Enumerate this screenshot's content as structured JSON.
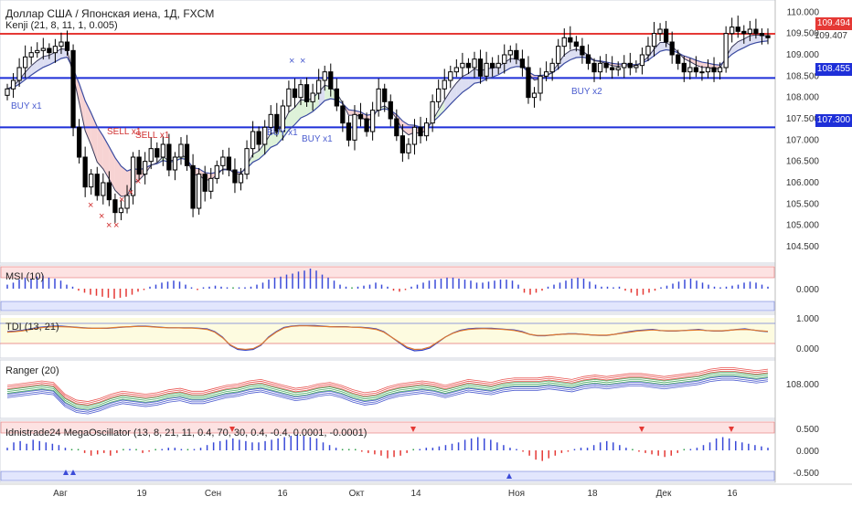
{
  "header": {
    "title": "Доллар США / Японская иена, 1Д, FXCM",
    "indicator": "Kenji (21, 8, 11, 1, 0.005)"
  },
  "colors": {
    "up": "#ffffff",
    "down": "#000000",
    "resistance": "#e53935",
    "support": "#1e2fd8",
    "kenji_fast": "#3a3a5a",
    "kenji_slow": "#3a4aa0",
    "cloud_bear": "#f5c8c8",
    "cloud_bull": "#d6efd0",
    "cloud_neutral": "#d3d6ef",
    "buy_label": "#4a5ccf",
    "sell_label": "#d03030",
    "osc_up": "#3a4ad8",
    "osc_down": "#e53935",
    "osc_flat": "#2e9e4a"
  },
  "levels": [
    {
      "name": "resistance",
      "value": "109.494",
      "color": "#e53935"
    },
    {
      "name": "support-1",
      "value": "108.455",
      "color": "#1e2fd8"
    },
    {
      "name": "support-2",
      "value": "107.300",
      "color": "#1e2fd8"
    }
  ],
  "current_price": "109.407",
  "x_labels": [
    "Авг",
    "19",
    "Сен",
    "16",
    "Окт",
    "14",
    "Ноя",
    "18",
    "Дек",
    "16"
  ],
  "signals": [
    {
      "text": "BUY x1",
      "color": "#4a5ccf"
    },
    {
      "text": "SELL x1",
      "color": "#d03030"
    },
    {
      "text": "SELL x1",
      "color": "#d03030"
    },
    {
      "text": "BUY x1",
      "color": "#4a5ccf"
    },
    {
      "text": "BUY x1",
      "color": "#4a5ccf"
    },
    {
      "text": "BUY x2",
      "color": "#4a5ccf"
    }
  ],
  "chart_data": [
    {
      "type": "candlestick",
      "title": "Доллар США / Японская иена, 1Д, FXCM",
      "ylim": [
        104.2,
        110.2
      ],
      "y_ticks": [
        "110.000",
        "109.500",
        "109.000",
        "108.500",
        "108.000",
        "107.500",
        "107.000",
        "106.500",
        "106.000",
        "105.500",
        "105.000",
        "104.500"
      ],
      "closes": [
        108.2,
        108.4,
        108.7,
        108.95,
        109.05,
        109.1,
        109.15,
        109.05,
        109.2,
        109.3,
        109.1,
        107.3,
        106.6,
        105.9,
        106.2,
        105.7,
        106.0,
        105.6,
        105.3,
        105.4,
        105.7,
        106.6,
        106.2,
        106.5,
        106.8,
        106.6,
        106.9,
        106.3,
        106.6,
        106.9,
        106.4,
        105.4,
        106.2,
        105.8,
        106.1,
        106.4,
        106.6,
        106.3,
        106.0,
        106.2,
        106.8,
        107.2,
        106.9,
        107.3,
        107.6,
        107.2,
        107.8,
        108.2,
        108.0,
        108.3,
        107.9,
        108.1,
        108.4,
        108.6,
        108.2,
        107.8,
        107.4,
        107.0,
        107.6,
        107.5,
        107.2,
        107.7,
        108.2,
        107.9,
        107.5,
        107.1,
        106.7,
        106.9,
        107.3,
        107.1,
        107.4,
        107.9,
        108.2,
        108.4,
        108.6,
        108.7,
        108.8,
        108.7,
        108.9,
        108.5,
        108.8,
        108.7,
        108.8,
        109.0,
        109.1,
        108.9,
        108.7,
        108.0,
        108.1,
        108.5,
        108.6,
        108.8,
        109.2,
        109.4,
        109.3,
        109.2,
        109.0,
        108.8,
        108.6,
        108.8,
        108.7,
        108.65,
        108.7,
        108.8,
        108.7,
        108.75,
        109.0,
        109.2,
        109.5,
        109.6,
        109.3,
        109.0,
        108.8,
        108.6,
        108.7,
        108.6,
        108.6,
        108.7,
        108.6,
        108.7,
        109.5,
        109.65,
        109.55,
        109.5,
        109.6,
        109.5,
        109.45,
        109.4
      ],
      "series": [
        {
          "name": "Kenji fast"
        },
        {
          "name": "Kenji slow"
        }
      ]
    },
    {
      "type": "bar",
      "title": "MSI (10)",
      "y_ticks": [
        "0.000"
      ],
      "values": [
        0.2,
        0.3,
        0.45,
        0.55,
        0.5,
        0.6,
        0.65,
        0.55,
        0.5,
        0.4,
        0.2,
        0.1,
        -0.1,
        -0.2,
        -0.3,
        -0.35,
        -0.4,
        -0.45,
        -0.5,
        -0.45,
        -0.4,
        -0.3,
        -0.15,
        -0.05,
        0.1,
        0.2,
        0.3,
        0.35,
        0.4,
        0.35,
        0.2,
        0.05,
        -0.05,
        0.05,
        0.1,
        0.15,
        0.1,
        0.05,
        0.0,
        0.05,
        0.05,
        0.1,
        0.2,
        0.3,
        0.45,
        0.55,
        0.6,
        0.7,
        0.75,
        0.85,
        0.9,
        1.0,
        0.9,
        0.7,
        0.55,
        0.4,
        0.2,
        0.1,
        0.0,
        0.1,
        0.15,
        0.2,
        0.3,
        0.2,
        0.1,
        -0.1,
        -0.15,
        -0.05,
        0.1,
        0.2,
        0.3,
        0.4,
        0.45,
        0.5,
        0.55,
        0.55,
        0.5,
        0.45,
        0.4,
        0.3,
        0.3,
        0.35,
        0.4,
        0.45,
        0.45,
        0.4,
        0.2,
        -0.2,
        -0.3,
        -0.2,
        -0.1,
        0.1,
        0.2,
        0.3,
        0.4,
        0.5,
        0.55,
        0.5,
        0.35,
        0.2,
        0.1,
        0.1,
        0.05,
        0.1,
        -0.1,
        -0.2,
        -0.35,
        -0.3,
        -0.2,
        -0.1,
        0.05,
        0.15,
        0.25,
        0.35,
        0.45,
        0.5,
        0.4,
        0.3,
        0.2,
        0.1,
        0.05,
        0.1,
        0.15,
        0.2,
        0.3,
        0.35,
        0.3,
        0.2,
        0.1
      ]
    },
    {
      "type": "line",
      "title": "TDI (13, 21)",
      "y_ticks": [
        "1.000",
        "0.000"
      ],
      "series": [
        {
          "values": [
            0.7,
            0.72,
            0.75,
            0.8,
            0.85,
            0.88,
            0.9,
            0.9,
            0.88,
            0.86,
            0.84,
            0.82,
            0.82,
            0.82,
            0.84,
            0.86,
            0.88,
            0.9,
            0.9,
            0.88,
            0.86,
            0.84,
            0.84,
            0.84,
            0.84,
            0.82,
            0.8,
            0.7,
            0.5,
            0.2,
            0.05,
            0.02,
            0.05,
            0.2,
            0.5,
            0.7,
            0.85,
            0.9,
            0.92,
            0.92,
            0.92,
            0.9,
            0.88,
            0.88,
            0.88,
            0.86,
            0.86,
            0.84,
            0.8,
            0.7,
            0.5,
            0.3,
            0.1,
            0.0,
            0.02,
            0.1,
            0.3,
            0.5,
            0.65,
            0.75,
            0.8,
            0.82,
            0.82,
            0.82,
            0.8,
            0.78,
            0.76,
            0.7,
            0.6,
            0.55,
            0.55,
            0.58,
            0.6,
            0.62,
            0.62,
            0.6,
            0.58,
            0.56,
            0.56,
            0.6,
            0.65,
            0.7,
            0.74,
            0.76,
            0.78,
            0.74,
            0.72,
            0.72,
            0.74,
            0.76,
            0.78,
            0.74,
            0.72,
            0.72,
            0.75,
            0.78,
            0.8,
            0.76,
            0.72,
            0.7
          ]
        },
        {
          "values": [
            0.68,
            0.7,
            0.73,
            0.78,
            0.83,
            0.86,
            0.88,
            0.88,
            0.87,
            0.85,
            0.83,
            0.82,
            0.82,
            0.83,
            0.85,
            0.87,
            0.88,
            0.89,
            0.89,
            0.87,
            0.85,
            0.84,
            0.84,
            0.83,
            0.83,
            0.81,
            0.78,
            0.68,
            0.48,
            0.22,
            0.08,
            0.05,
            0.08,
            0.22,
            0.48,
            0.68,
            0.83,
            0.89,
            0.91,
            0.91,
            0.9,
            0.89,
            0.88,
            0.87,
            0.87,
            0.86,
            0.85,
            0.82,
            0.78,
            0.68,
            0.5,
            0.32,
            0.14,
            0.05,
            0.06,
            0.14,
            0.32,
            0.5,
            0.64,
            0.73,
            0.78,
            0.8,
            0.81,
            0.8,
            0.79,
            0.77,
            0.74,
            0.68,
            0.6,
            0.56,
            0.56,
            0.58,
            0.6,
            0.61,
            0.61,
            0.6,
            0.58,
            0.57,
            0.57,
            0.6,
            0.64,
            0.68,
            0.72,
            0.74,
            0.76,
            0.74,
            0.73,
            0.73,
            0.74,
            0.75,
            0.76,
            0.74,
            0.73,
            0.73,
            0.75,
            0.77,
            0.78,
            0.76,
            0.73,
            0.71
          ]
        }
      ]
    },
    {
      "type": "line",
      "title": "Ranger (20)",
      "y_ticks": [
        "108.000"
      ],
      "series": [
        {
          "values": [
            108.0,
            108.1,
            108.2,
            108.3,
            108.2,
            107.4,
            107.0,
            106.9,
            107.1,
            107.4,
            107.6,
            107.5,
            107.4,
            107.5,
            107.7,
            107.8,
            107.6,
            107.6,
            107.8,
            108.0,
            108.1,
            108.3,
            108.4,
            108.2,
            108.0,
            107.8,
            107.9,
            108.1,
            108.2,
            108.0,
            107.7,
            107.5,
            107.6,
            107.9,
            108.1,
            108.2,
            108.3,
            108.2,
            108.0,
            108.2,
            108.4,
            108.3,
            108.2,
            108.4,
            108.5,
            108.5,
            108.5,
            108.6,
            108.5,
            108.4,
            108.6,
            108.7,
            108.6,
            108.7,
            108.8,
            108.8,
            108.7,
            108.6,
            108.7,
            108.8,
            108.9,
            109.1,
            109.2,
            109.2,
            109.1,
            109.0,
            109.1
          ]
        },
        {
          "values": [
            107.7,
            107.8,
            107.9,
            108.0,
            107.9,
            107.1,
            106.7,
            106.6,
            106.8,
            107.1,
            107.3,
            107.2,
            107.1,
            107.2,
            107.4,
            107.5,
            107.3,
            107.3,
            107.5,
            107.7,
            107.8,
            108.0,
            108.1,
            107.9,
            107.7,
            107.5,
            107.6,
            107.8,
            107.9,
            107.7,
            107.4,
            107.2,
            107.3,
            107.6,
            107.8,
            107.9,
            108.0,
            107.9,
            107.7,
            107.9,
            108.1,
            108.0,
            107.9,
            108.1,
            108.2,
            108.2,
            108.2,
            108.3,
            108.2,
            108.1,
            108.3,
            108.4,
            108.3,
            108.4,
            108.5,
            108.5,
            108.4,
            108.3,
            108.4,
            108.5,
            108.6,
            108.8,
            108.9,
            108.9,
            108.8,
            108.7,
            108.8
          ]
        },
        {
          "values": [
            107.4,
            107.5,
            107.6,
            107.7,
            107.6,
            106.8,
            106.4,
            106.3,
            106.5,
            106.8,
            107.0,
            106.9,
            106.8,
            106.9,
            107.1,
            107.2,
            107.0,
            107.0,
            107.2,
            107.4,
            107.5,
            107.7,
            107.8,
            107.6,
            107.4,
            107.2,
            107.3,
            107.5,
            107.6,
            107.4,
            107.1,
            106.9,
            107.0,
            107.3,
            107.5,
            107.6,
            107.7,
            107.6,
            107.4,
            107.6,
            107.8,
            107.7,
            107.6,
            107.8,
            107.9,
            107.9,
            107.9,
            108.0,
            107.9,
            107.8,
            108.0,
            108.1,
            108.0,
            108.1,
            108.2,
            108.2,
            108.1,
            108.0,
            108.1,
            108.2,
            108.3,
            108.5,
            108.6,
            108.6,
            108.5,
            108.4,
            108.5
          ]
        }
      ]
    },
    {
      "type": "bar",
      "title": "Idnistrade24 MegaOscillator (13, 8, 21, 11, 0.4, 70, 30, 0.4, -0.4, 0.0001, -0.0001)",
      "y_ticks": [
        "0.500",
        "0.000",
        "-0.500"
      ],
      "values": [
        0.1,
        0.3,
        0.35,
        0.25,
        0.4,
        0.35,
        0.3,
        0.25,
        0.2,
        0.1,
        0.0,
        0.0,
        -0.1,
        -0.2,
        -0.15,
        -0.1,
        -0.2,
        -0.1,
        0.0,
        0.05,
        0.0,
        -0.1,
        -0.05,
        0.0,
        0.05,
        0.1,
        0.1,
        0.05,
        0.0,
        0.05,
        0.1,
        0.2,
        0.3,
        0.35,
        0.4,
        0.45,
        0.4,
        0.35,
        0.3,
        0.3,
        0.35,
        0.4,
        0.45,
        0.5,
        0.55,
        0.6,
        0.55,
        0.5,
        0.45,
        0.3,
        0.2,
        0.1,
        0.0,
        0.0,
        0.0,
        -0.05,
        -0.1,
        -0.15,
        -0.2,
        -0.3,
        -0.25,
        -0.2,
        -0.1,
        0.0,
        0.05,
        0.1,
        0.1,
        0.15,
        0.2,
        0.25,
        0.3,
        0.4,
        0.45,
        0.5,
        0.45,
        0.4,
        0.3,
        0.2,
        0.1,
        0.05,
        -0.05,
        -0.2,
        -0.35,
        -0.4,
        -0.3,
        -0.2,
        -0.1,
        -0.05,
        0.05,
        0.1,
        0.1,
        0.2,
        0.3,
        0.35,
        0.3,
        0.2,
        0.1,
        0.0,
        -0.05,
        -0.1,
        -0.15,
        -0.2,
        -0.25,
        -0.2,
        -0.1,
        0.0,
        0.05,
        0.1,
        0.2,
        0.3,
        0.45,
        0.5,
        0.45,
        0.35,
        0.3,
        0.25,
        0.2,
        0.15,
        0.1
      ]
    }
  ]
}
